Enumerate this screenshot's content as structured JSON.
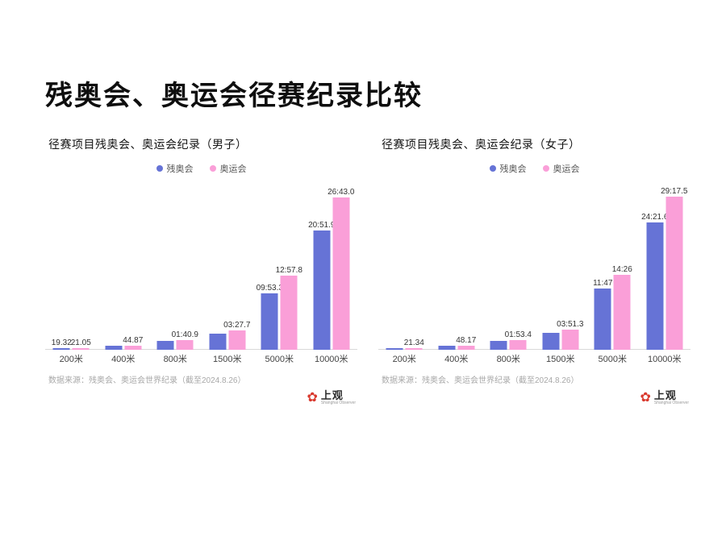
{
  "page": {
    "title": "残奥会、奥运会径赛纪录比较"
  },
  "logo": {
    "text": "上观",
    "subtext": "Shanghai Observer"
  },
  "chart_data": [
    {
      "type": "bar",
      "title": "径赛项目残奥会、奥运会纪录（男子）",
      "categories": [
        "200米",
        "400米",
        "800米",
        "1500米",
        "5000米",
        "10000米"
      ],
      "unit": "seconds",
      "ylim": [
        0,
        1610
      ],
      "grid": false,
      "legend_position": "top-center",
      "series": [
        {
          "key": "paralympic",
          "name": "残奥会",
          "color": "#6673d6",
          "values": [
            19.32,
            43.0,
            90.9,
            170.0,
            593.3,
            1251.9
          ],
          "labels": [
            "19.32",
            "",
            "",
            "",
            "09:53.3",
            "20:51.9"
          ]
        },
        {
          "key": "olympic",
          "name": "奥运会",
          "color": "#fa9fd8",
          "values": [
            21.05,
            44.87,
            100.9,
            207.7,
            777.8,
            1603.0
          ],
          "labels": [
            "21.05",
            "44.87",
            "01:40.9",
            "03:27.7",
            "12:57.8",
            "26:43.0"
          ]
        }
      ],
      "source": "数据来源：残奥会、奥运会世界纪录（截至2024.8.26）"
    },
    {
      "type": "bar",
      "title": "径赛项目残奥会、奥运会纪录（女子）",
      "categories": [
        "200米",
        "400米",
        "800米",
        "1500米",
        "5000米",
        "10000米"
      ],
      "unit": "seconds",
      "ylim": [
        0,
        1760
      ],
      "grid": false,
      "legend_position": "top-center",
      "series": [
        {
          "key": "paralympic",
          "name": "残奥会",
          "color": "#6673d6",
          "values": [
            23.0,
            48.0,
            105.0,
            200.0,
            707.0,
            1461.6
          ],
          "labels": [
            "",
            "",
            "",
            "",
            "11:47",
            "24:21.6"
          ]
        },
        {
          "key": "olympic",
          "name": "奥运会",
          "color": "#fa9fd8",
          "values": [
            21.34,
            48.17,
            113.4,
            231.3,
            866.0,
            1757.5
          ],
          "labels": [
            "21.34",
            "48.17",
            "01:53.4",
            "03:51.3",
            "14:26",
            "29:17.5"
          ]
        }
      ],
      "source": "数据来源：残奥会、奥运会世界纪录（截至2024.8.26）"
    }
  ]
}
